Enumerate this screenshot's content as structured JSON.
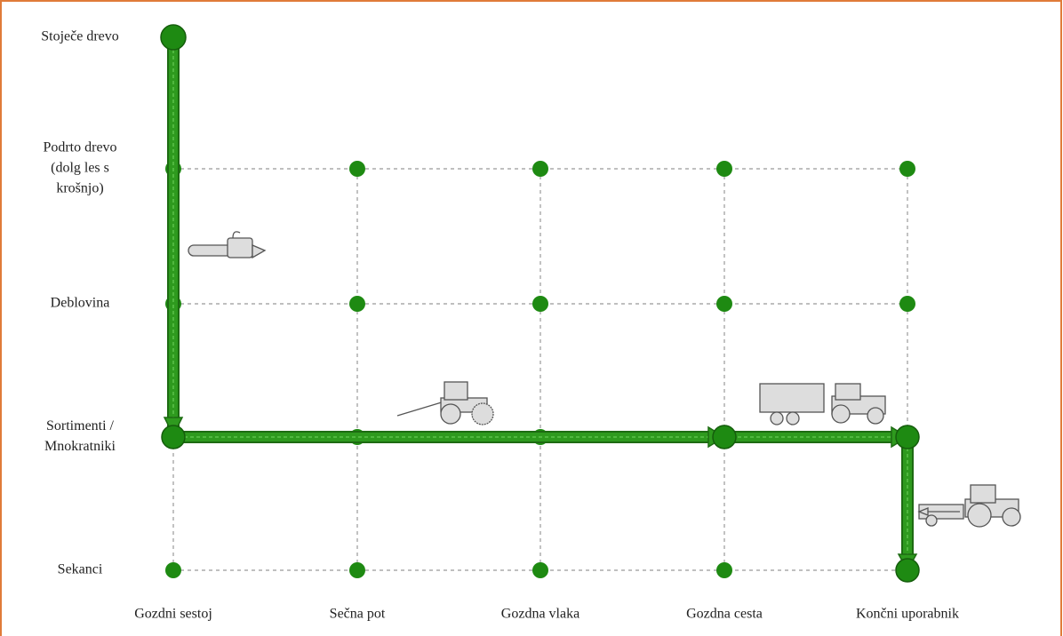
{
  "rows": [
    {
      "lines": [
        "Stoječe drevo"
      ]
    },
    {
      "lines": [
        "Podrto drevo",
        "(dolg les s",
        "krošnjo)"
      ]
    },
    {
      "lines": [
        "Deblovina"
      ]
    },
    {
      "lines": [
        "Sortimenti /",
        "Mnokratniki"
      ]
    },
    {
      "lines": [
        "Sekanci"
      ]
    }
  ],
  "columns": [
    "Gozdni sestoj",
    "Sečna pot",
    "Gozdna vlaka",
    "Gozdna cesta",
    "Končni uporabnik"
  ]
}
